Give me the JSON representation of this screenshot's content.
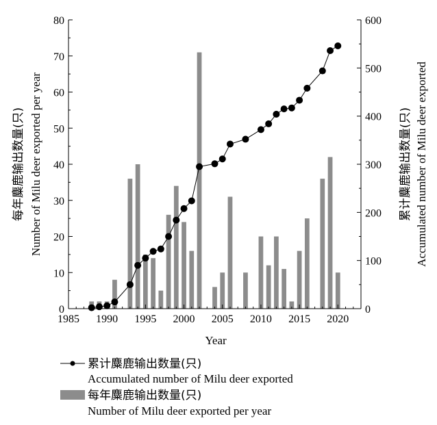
{
  "chart_data": {
    "type": "bar+line",
    "x_label": "Year",
    "x_ticks": [
      1985,
      1990,
      1995,
      2000,
      2005,
      2010,
      2015,
      2020
    ],
    "x_range": [
      1985,
      2023
    ],
    "y_left": {
      "label_cn": "每年麋鹿输出数量(只)",
      "label_en": "Number of Milu deer exported per year",
      "range": [
        0,
        80
      ],
      "ticks": [
        0,
        10,
        20,
        30,
        40,
        50,
        60,
        70,
        80
      ]
    },
    "y_right": {
      "label_cn": "累计麋鹿输出数量(只)",
      "label_en": "Accumulated number of Milu deer exported",
      "range": [
        0,
        600
      ],
      "ticks": [
        0,
        100,
        200,
        300,
        400,
        500,
        600
      ]
    },
    "series": [
      {
        "name": "每年麋鹿输出数量(只) / Number of Milu deer exported per year",
        "type": "bar",
        "axis": "left",
        "color": "#8c8c8c",
        "x": [
          1988,
          1989,
          1990,
          1991,
          1993,
          1994,
          1995,
          1996,
          1997,
          1998,
          1999,
          2000,
          2001,
          2002,
          2004,
          2005,
          2006,
          2008,
          2010,
          2011,
          2012,
          2013,
          2014,
          2015,
          2016,
          2018,
          2019,
          2020
        ],
        "values": [
          2,
          2,
          2,
          8,
          36,
          40,
          15,
          14,
          5,
          26,
          34,
          24,
          16,
          71,
          6,
          10,
          31,
          10,
          20,
          12,
          20,
          11,
          2,
          16,
          25,
          36,
          42,
          10
        ]
      },
      {
        "name": "累计麋鹿输出数量(只) / Accumulated number of Milu deer exported",
        "type": "line",
        "axis": "right",
        "color": "#000000",
        "x": [
          1988,
          1989,
          1990,
          1991,
          1993,
          1994,
          1995,
          1996,
          1997,
          1998,
          1999,
          2000,
          2001,
          2002,
          2004,
          2005,
          2006,
          2008,
          2010,
          2011,
          2012,
          2013,
          2014,
          2015,
          2016,
          2018,
          2019,
          2020
        ],
        "values": [
          2,
          4,
          6,
          14,
          50,
          90,
          105,
          119,
          124,
          150,
          184,
          208,
          224,
          295,
          301,
          311,
          342,
          352,
          372,
          384,
          404,
          415,
          417,
          433,
          458,
          494,
          536,
          546
        ]
      }
    ],
    "legend": {
      "position": "bottom",
      "line_label_cn": "累计麋鹿输出数量(只)",
      "line_label_en": "Accumulated number of Milu deer exported",
      "bar_label_cn": "每年麋鹿输出数量(只)",
      "bar_label_en": "Number of Milu deer exported per year"
    }
  }
}
